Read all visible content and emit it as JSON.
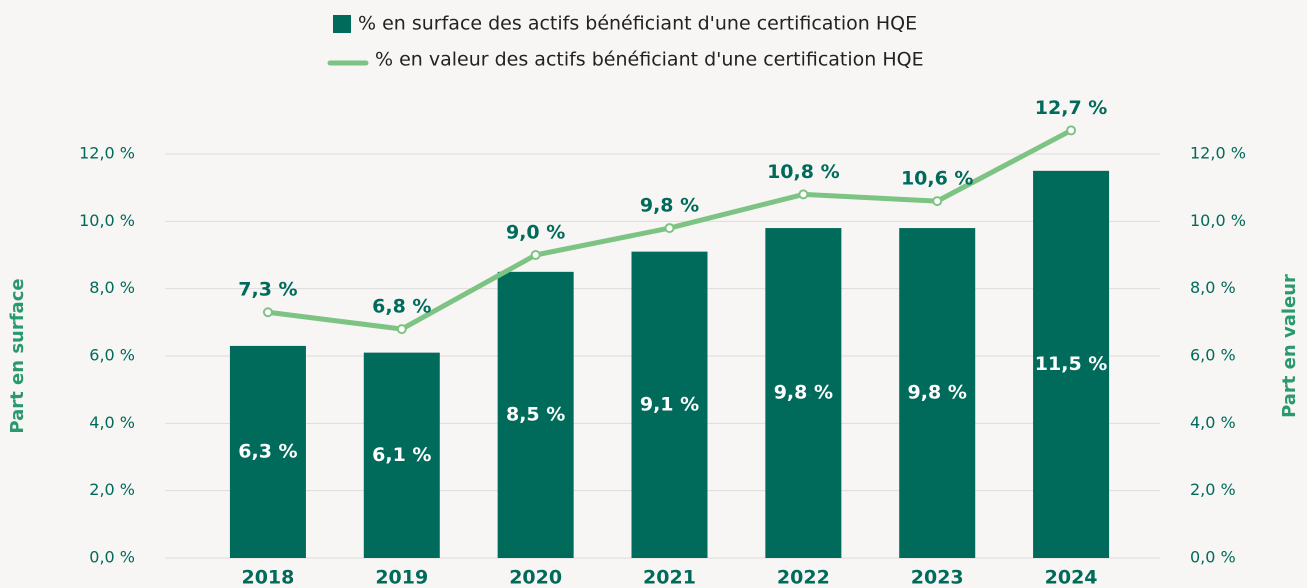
{
  "chart_data": {
    "type": "bar",
    "categories": [
      "2018",
      "2019",
      "2020",
      "2021",
      "2022",
      "2023",
      "2024"
    ],
    "series": [
      {
        "name": "% en surface des actifs bénéficiant d'une certification HQE",
        "type": "bar",
        "axis": "y",
        "color": "#006b5b",
        "values": [
          6.3,
          6.1,
          8.5,
          9.1,
          9.8,
          9.8,
          11.5
        ],
        "value_labels": [
          "6,3 %",
          "6,1 %",
          "8,5 %",
          "9,1 %",
          "9,8 %",
          "9,8 %",
          "11,5 %"
        ]
      },
      {
        "name": "% en valeur des actifs bénéficiant d'une certification HQE",
        "type": "line",
        "axis": "y2",
        "color": "#7dc383",
        "values": [
          7.3,
          6.8,
          9.0,
          9.8,
          10.8,
          10.6,
          12.7
        ],
        "value_labels": [
          "7,3 %",
          "6,8 %",
          "9,0 %",
          "9,8 %",
          "10,8 %",
          "10,6 %",
          "12,7 %"
        ]
      }
    ],
    "ylabel": "Part en surface",
    "y2label": "Part en valeur",
    "ylim": [
      0,
      12
    ],
    "yticks": [
      {
        "value": 0,
        "label": "0,0 %"
      },
      {
        "value": 2,
        "label": "2,0 %"
      },
      {
        "value": 4,
        "label": "4,0 %"
      },
      {
        "value": 6,
        "label": "6,0 %"
      },
      {
        "value": 8,
        "label": "8,0 %"
      },
      {
        "value": 10,
        "label": "10,0 %"
      },
      {
        "value": 12,
        "label": "12,0 %"
      }
    ],
    "y2lim": [
      0,
      12
    ],
    "y2ticks": [
      {
        "value": 0,
        "label": "0,0 %"
      },
      {
        "value": 2,
        "label": "2,0 %"
      },
      {
        "value": 4,
        "label": "4,0 %"
      },
      {
        "value": 6,
        "label": "6,0 %"
      },
      {
        "value": 8,
        "label": "8,0 %"
      },
      {
        "value": 10,
        "label": "10,0 %"
      },
      {
        "value": 12,
        "label": "12,0 %"
      }
    ],
    "grid": true,
    "legend": "top"
  }
}
